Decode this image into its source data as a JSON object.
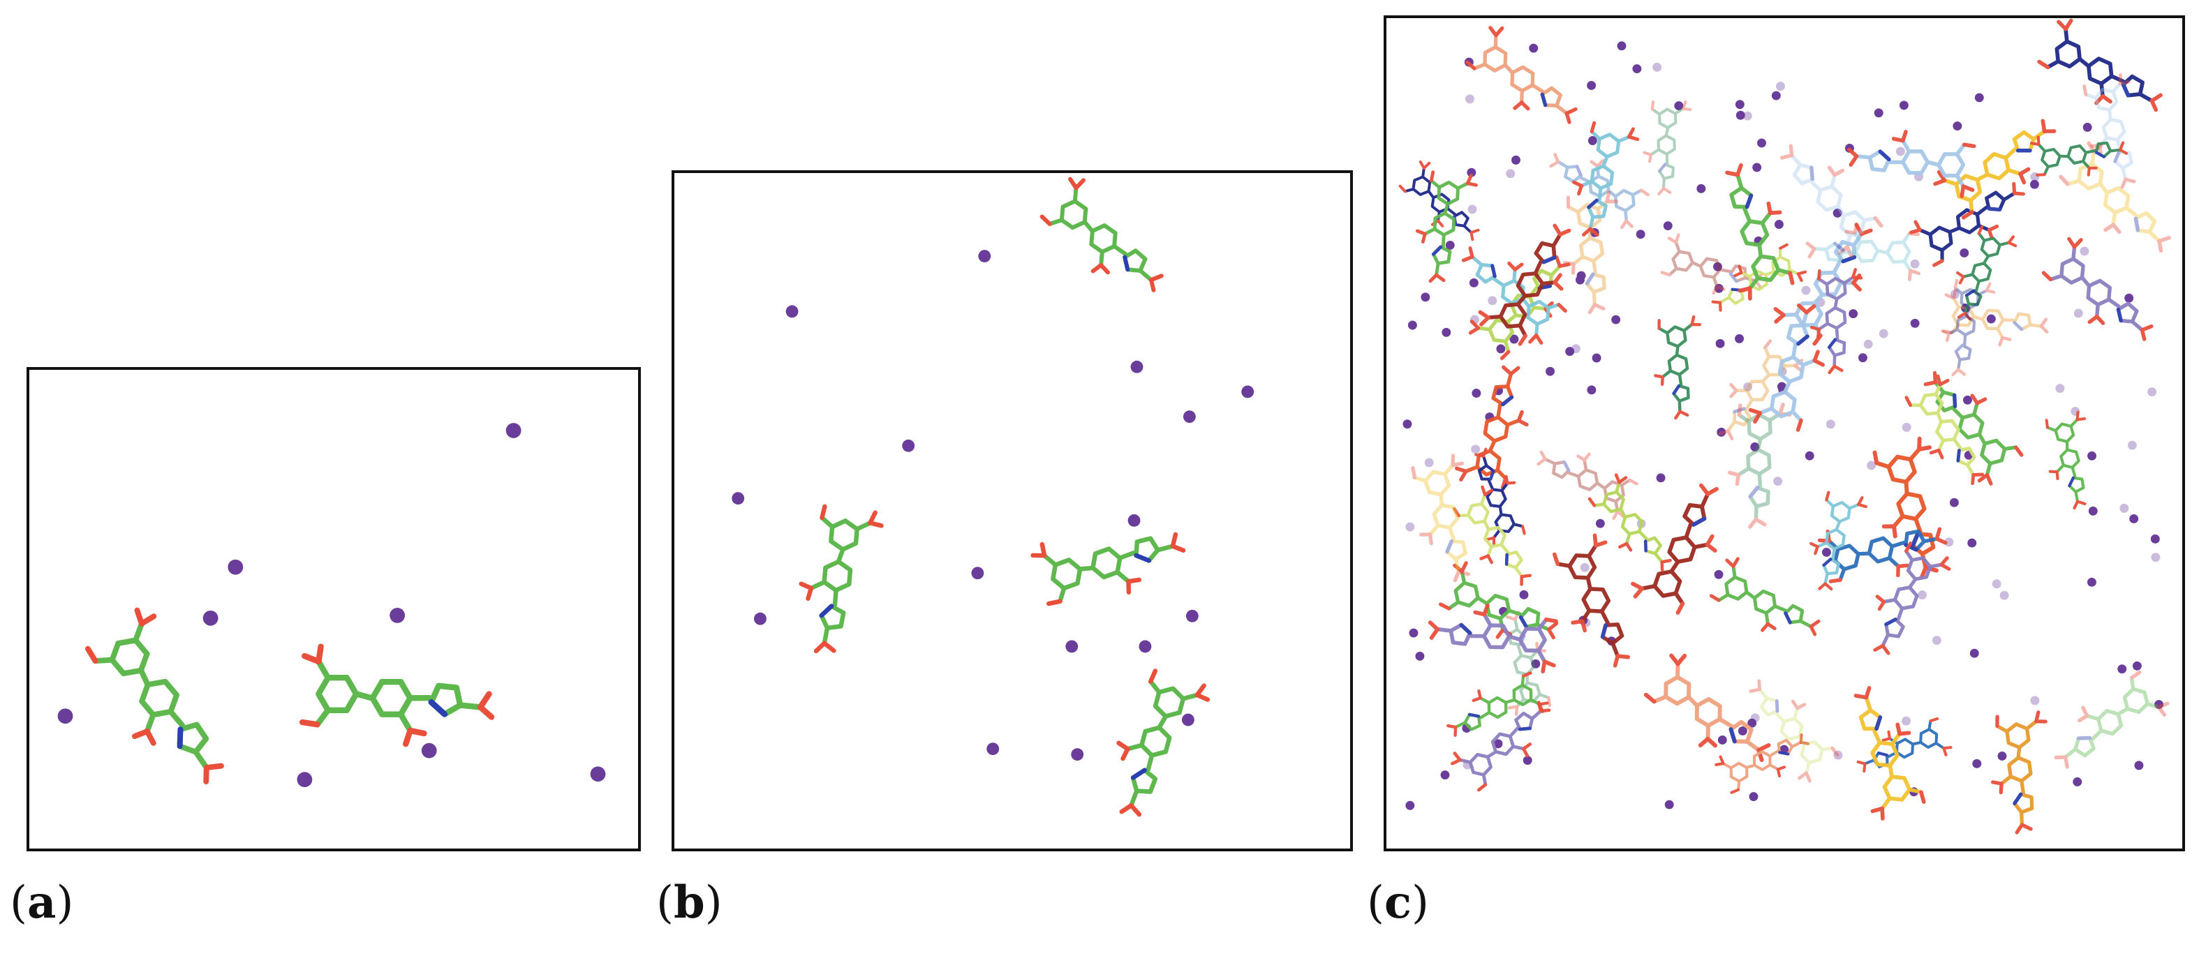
{
  "panels": [
    {
      "id": "a",
      "label_open": "(",
      "letter": "a",
      "label_close": ")"
    },
    {
      "id": "b",
      "label_open": "(",
      "letter": "b",
      "label_close": ")"
    },
    {
      "id": "c",
      "label_open": "(",
      "letter": "c",
      "label_close": ")"
    }
  ],
  "colors": {
    "ion": "#6a3d9a",
    "carbon_default": "#5fb84e",
    "oxygen": "#e8503c",
    "nitrogen": "#2a3fb0",
    "palette_c": [
      "#e8572b",
      "#f2c230",
      "#2e6fba",
      "#5fb84e",
      "#1f2a8a",
      "#e89a2e",
      "#7fc7d9",
      "#b6d65a",
      "#9c2a20",
      "#3a8f5e",
      "#f0a27e",
      "#a7c7e7",
      "#8c7fc0",
      "#d4e37a"
    ]
  }
}
